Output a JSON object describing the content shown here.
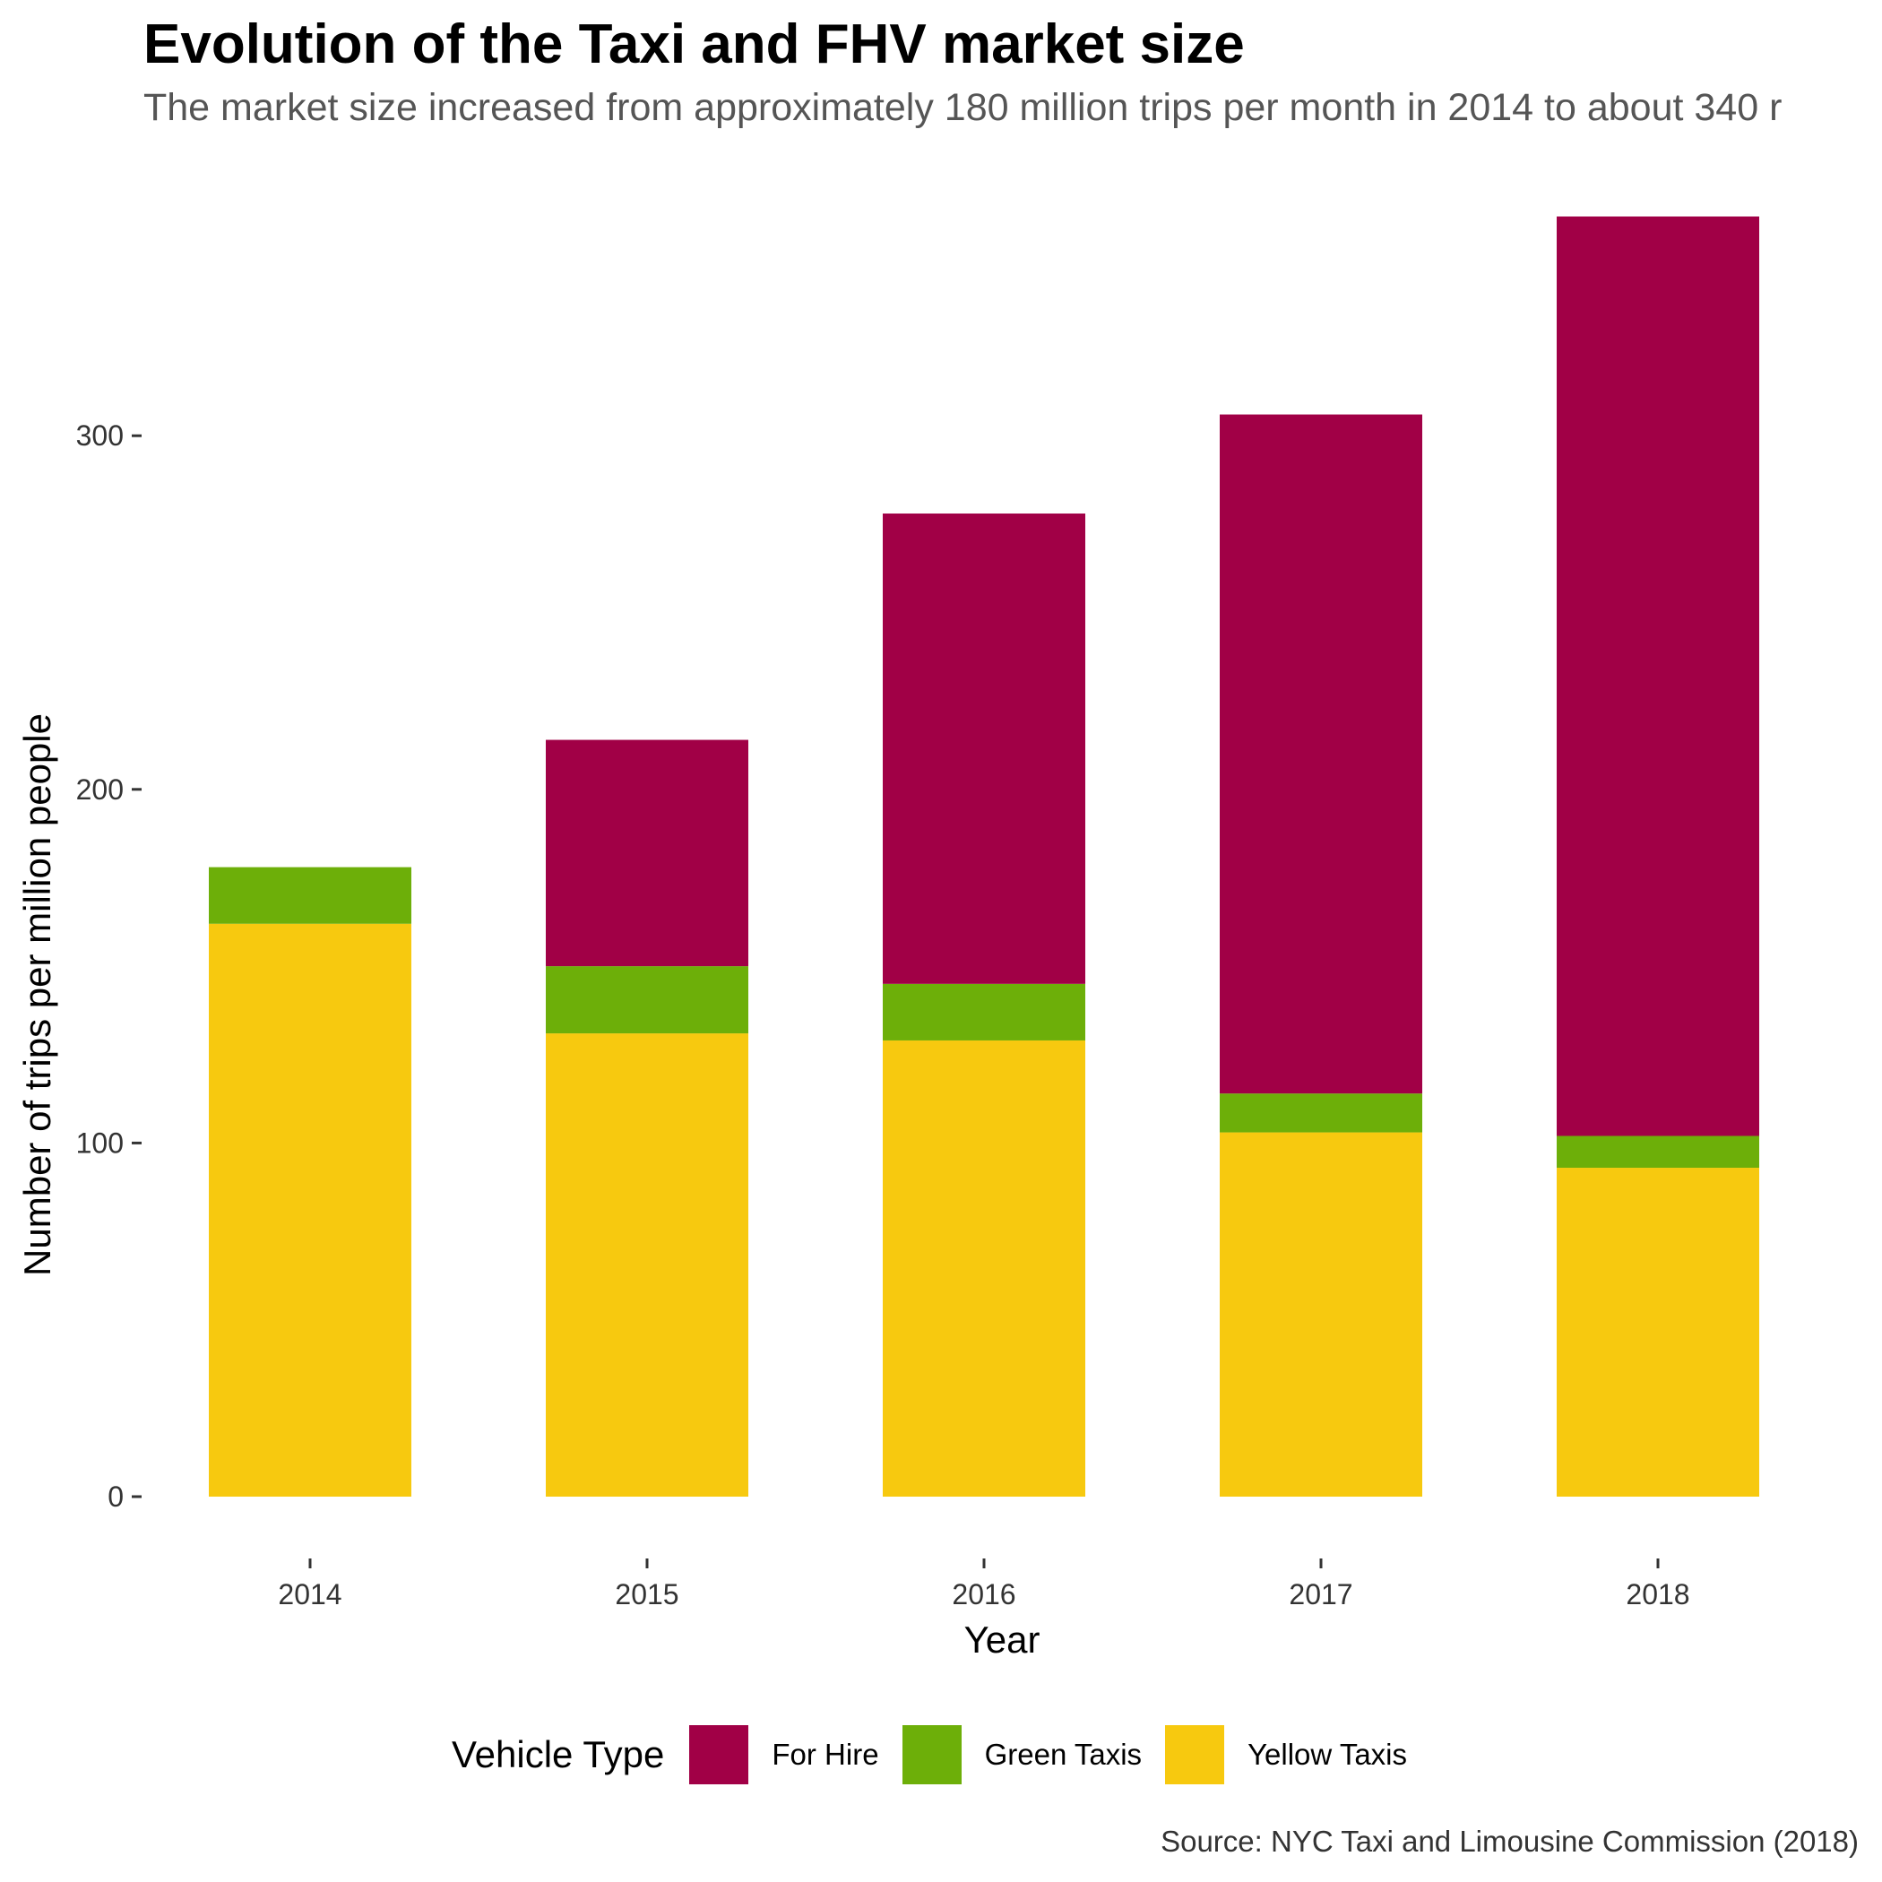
{
  "chart_data": {
    "type": "bar",
    "stacked": true,
    "title": "Evolution of the Taxi and FHV market size",
    "subtitle": "The market size increased from approximately 180 million trips per month in 2014 to about 340 r",
    "xlabel": "Year",
    "ylabel": "Number of trips per million people",
    "caption": "Source: NYC Taxi and Limousine Commission (2018)",
    "categories": [
      "2014",
      "2015",
      "2016",
      "2017",
      "2018"
    ],
    "yticks": [
      "0",
      "100",
      "200",
      "300"
    ],
    "ylim": [
      0,
      362
    ],
    "grid": false,
    "legend": {
      "title": "Vehicle Type",
      "position": "bottom"
    },
    "series": [
      {
        "name": "Yellow Taxis",
        "color": "#F7C90F",
        "values": [
          162,
          131,
          129,
          103,
          93
        ]
      },
      {
        "name": "Green Taxis",
        "color": "#6DAF09",
        "values": [
          16,
          19,
          16,
          11,
          9
        ]
      },
      {
        "name": "For Hire",
        "color": "#A10046",
        "values": [
          0,
          64,
          133,
          192,
          260
        ]
      }
    ],
    "legend_order": [
      "For Hire",
      "Green Taxis",
      "Yellow Taxis"
    ]
  }
}
